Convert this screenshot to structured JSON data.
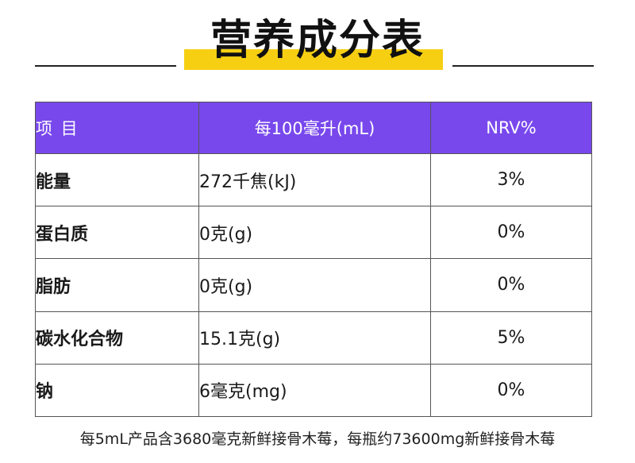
{
  "title": "营养成分表",
  "colors": {
    "header_bg": "#7848ec",
    "highlight": "#f6cf12"
  },
  "table": {
    "headers": [
      "项 目",
      "每100毫升(mL)",
      "NRV%"
    ],
    "rows": [
      {
        "name": "能量",
        "amount": "272千焦(kJ)",
        "nrv": "3%"
      },
      {
        "name": "蛋白质",
        "amount": "0克(g)",
        "nrv": "0%"
      },
      {
        "name": "脂肪",
        "amount": "0克(g)",
        "nrv": "0%"
      },
      {
        "name": "碳水化合物",
        "amount": "15.1克(g)",
        "nrv": "5%"
      },
      {
        "name": "钠",
        "amount": "6毫克(mg)",
        "nrv": "0%"
      }
    ]
  },
  "footer": "每5mL产品含3680毫克新鲜接骨木莓，每瓶约73600mg新鲜接骨木莓"
}
